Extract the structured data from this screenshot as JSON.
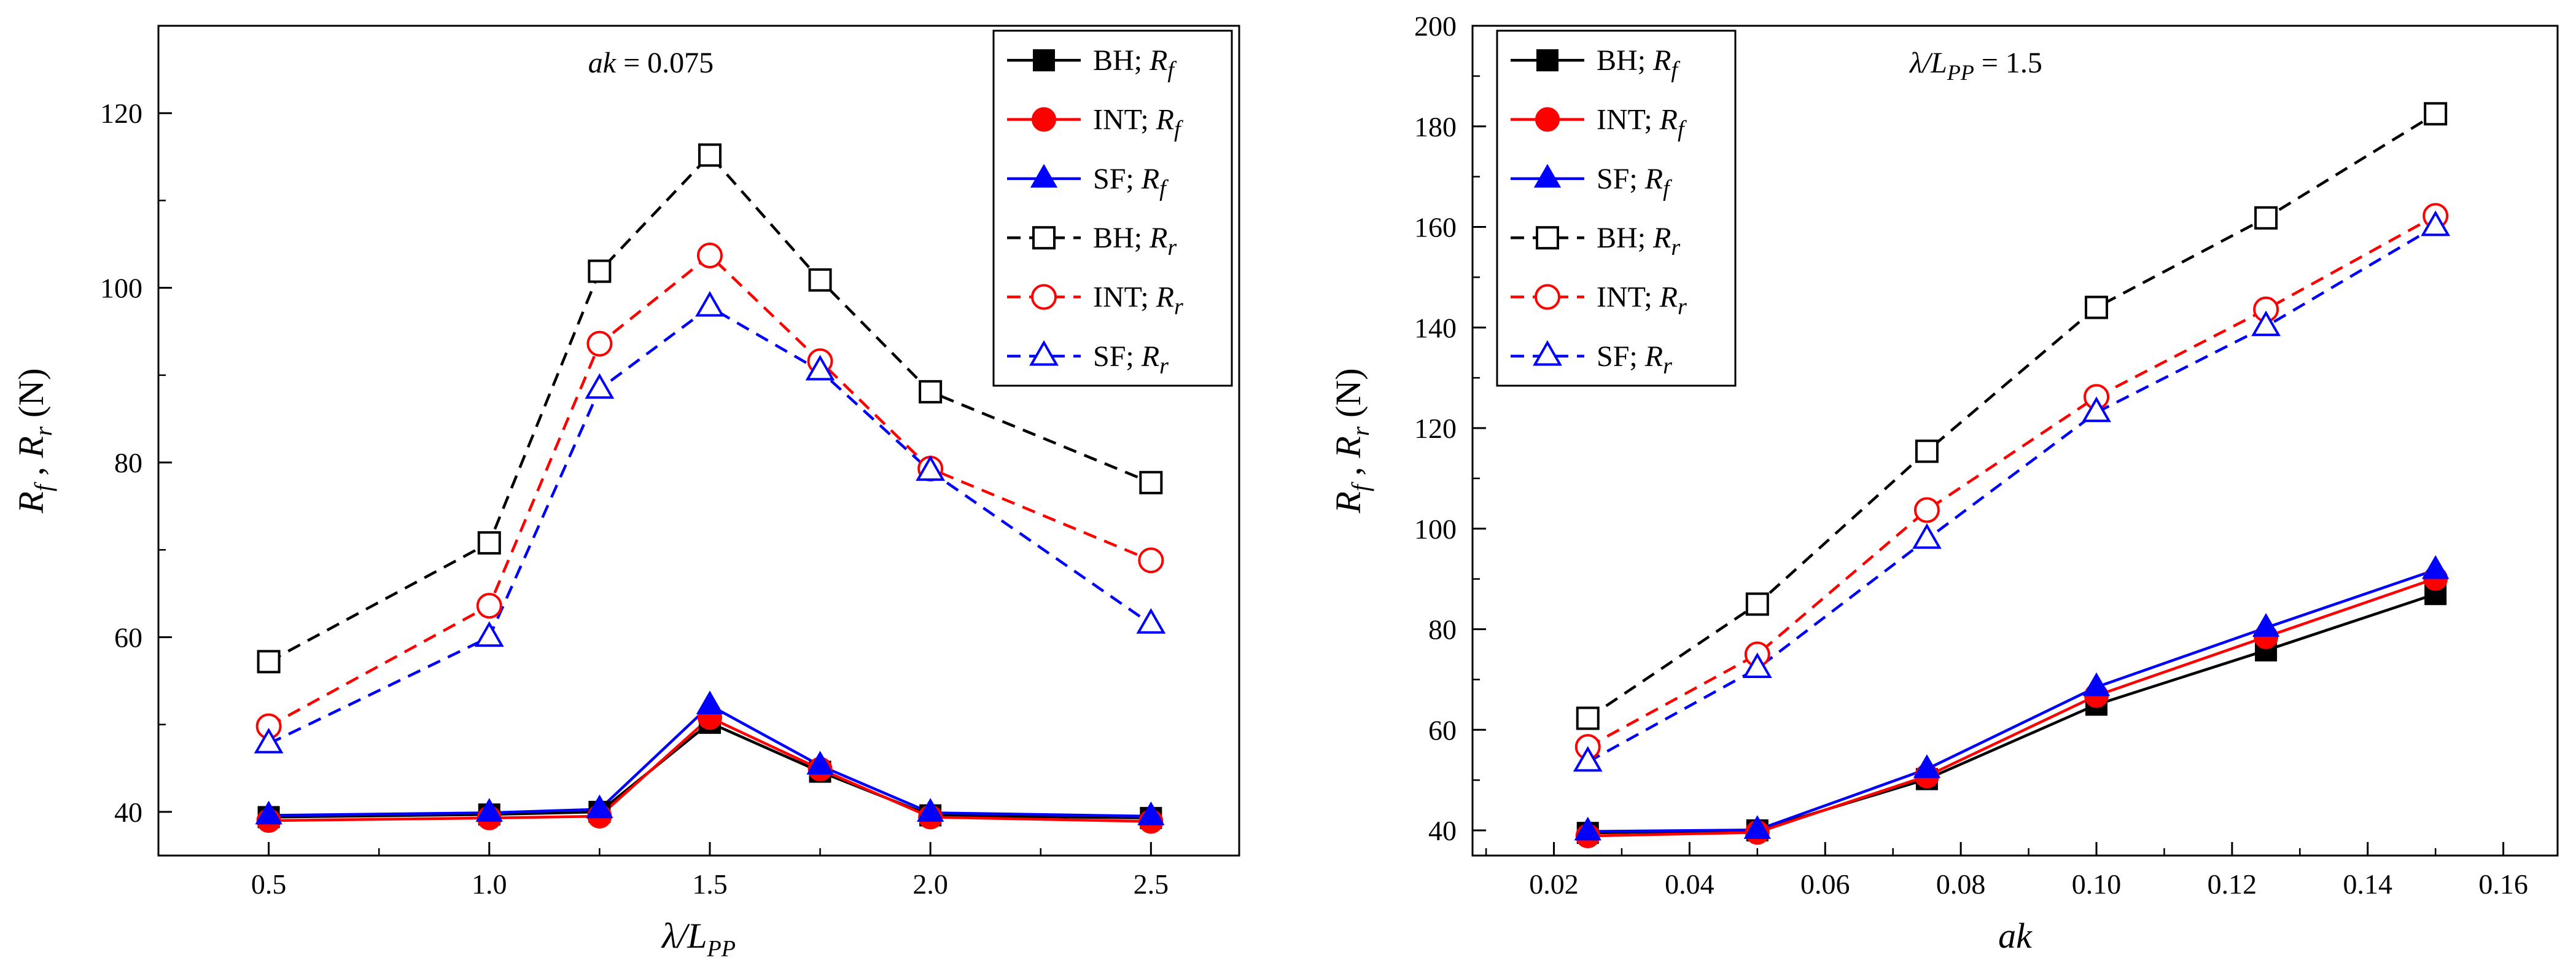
{
  "colors": {
    "BH": "#000000",
    "INT": "#ff0000",
    "SF": "#0000ff"
  },
  "chart_data": [
    {
      "type": "line",
      "annotation": {
        "var": "ak",
        "rest": " = 0.075"
      },
      "xlabel": {
        "main": "λ/L",
        "sub": "PP"
      },
      "ylabel": {
        "a": "R",
        "a_sub": "f",
        "sep": " , ",
        "b": "R",
        "b_sub": "r",
        "unit": " (N)"
      },
      "xlim": [
        0.25,
        2.7
      ],
      "ylim": [
        35,
        130
      ],
      "xticks": [
        "0.5",
        "1.0",
        "1.5",
        "2.0",
        "2.5"
      ],
      "yticks": [
        "40",
        "60",
        "80",
        "100",
        "120"
      ],
      "x": [
        0.5,
        1.0,
        1.25,
        1.5,
        1.75,
        2.0,
        2.5
      ],
      "series": [
        {
          "method": "BH",
          "sep": "; ",
          "var": "R",
          "sub": "f",
          "style": "solid",
          "marker": "square",
          "values": [
            39.4,
            39.7,
            40.0,
            50.2,
            44.6,
            39.6,
            39.3
          ]
        },
        {
          "method": "INT",
          "sep": "; ",
          "var": "R",
          "sub": "f",
          "style": "solid",
          "marker": "circle",
          "values": [
            39.0,
            39.3,
            39.5,
            50.8,
            44.9,
            39.4,
            38.9
          ]
        },
        {
          "method": "SF",
          "sep": "; ",
          "var": "R",
          "sub": "f",
          "style": "solid",
          "marker": "triangle",
          "values": [
            39.6,
            39.9,
            40.3,
            52.2,
            45.3,
            39.9,
            39.5
          ]
        },
        {
          "method": "BH",
          "sep": "; ",
          "var": "R",
          "sub": "r",
          "style": "dashed",
          "marker": "square-open",
          "values": [
            57.2,
            70.8,
            101.9,
            115.2,
            100.9,
            88.1,
            77.7
          ]
        },
        {
          "method": "INT",
          "sep": "; ",
          "var": "R",
          "sub": "r",
          "style": "dashed",
          "marker": "circle-open",
          "values": [
            49.8,
            63.6,
            93.6,
            103.7,
            91.6,
            79.3,
            68.8
          ]
        },
        {
          "method": "SF",
          "sep": "; ",
          "var": "R",
          "sub": "r",
          "style": "dashed",
          "marker": "triangle-open",
          "values": [
            47.8,
            60.0,
            88.4,
            97.8,
            90.5,
            79.0,
            61.5
          ]
        }
      ]
    },
    {
      "type": "line",
      "annotation": {
        "var": "λ/L",
        "sub": "PP",
        "rest": " = 1.5"
      },
      "xlabel": {
        "main": "ak",
        "sub": ""
      },
      "ylabel": {
        "a": "R",
        "a_sub": "f",
        "sep": " , ",
        "b": "R",
        "b_sub": "r",
        "unit": " (N)"
      },
      "xlim": [
        0.008,
        0.168
      ],
      "ylim": [
        35,
        200
      ],
      "xticks": [
        "0.02",
        "0.04",
        "0.06",
        "0.08",
        "0.10",
        "0.12",
        "0.14",
        "0.16"
      ],
      "yticks": [
        "40",
        "60",
        "80",
        "100",
        "120",
        "140",
        "160",
        "180",
        "200"
      ],
      "x": [
        0.025,
        0.05,
        0.075,
        0.1,
        0.125,
        0.15
      ],
      "series": [
        {
          "method": "BH",
          "sep": "; ",
          "var": "R",
          "sub": "f",
          "style": "solid",
          "marker": "square",
          "values": [
            39.5,
            40.0,
            50.2,
            65.0,
            75.8,
            87.0
          ]
        },
        {
          "method": "INT",
          "sep": "; ",
          "var": "R",
          "sub": "f",
          "style": "solid",
          "marker": "circle",
          "values": [
            38.9,
            39.6,
            50.8,
            66.8,
            78.5,
            90.1
          ]
        },
        {
          "method": "SF",
          "sep": "; ",
          "var": "R",
          "sub": "f",
          "style": "solid",
          "marker": "triangle",
          "values": [
            39.8,
            40.1,
            52.2,
            68.5,
            80.3,
            91.8
          ]
        },
        {
          "method": "BH",
          "sep": "; ",
          "var": "R",
          "sub": "r",
          "style": "dashed",
          "marker": "square-open",
          "values": [
            62.3,
            85.0,
            115.4,
            144.0,
            161.8,
            182.5
          ]
        },
        {
          "method": "INT",
          "sep": "; ",
          "var": "R",
          "sub": "r",
          "style": "dashed",
          "marker": "circle-open",
          "values": [
            56.6,
            75.0,
            103.7,
            126.2,
            143.6,
            162.2
          ]
        },
        {
          "method": "SF",
          "sep": "; ",
          "var": "R",
          "sub": "r",
          "style": "dashed",
          "marker": "triangle-open",
          "values": [
            53.6,
            72.2,
            97.9,
            123.1,
            140.2,
            160.1
          ]
        }
      ]
    }
  ]
}
